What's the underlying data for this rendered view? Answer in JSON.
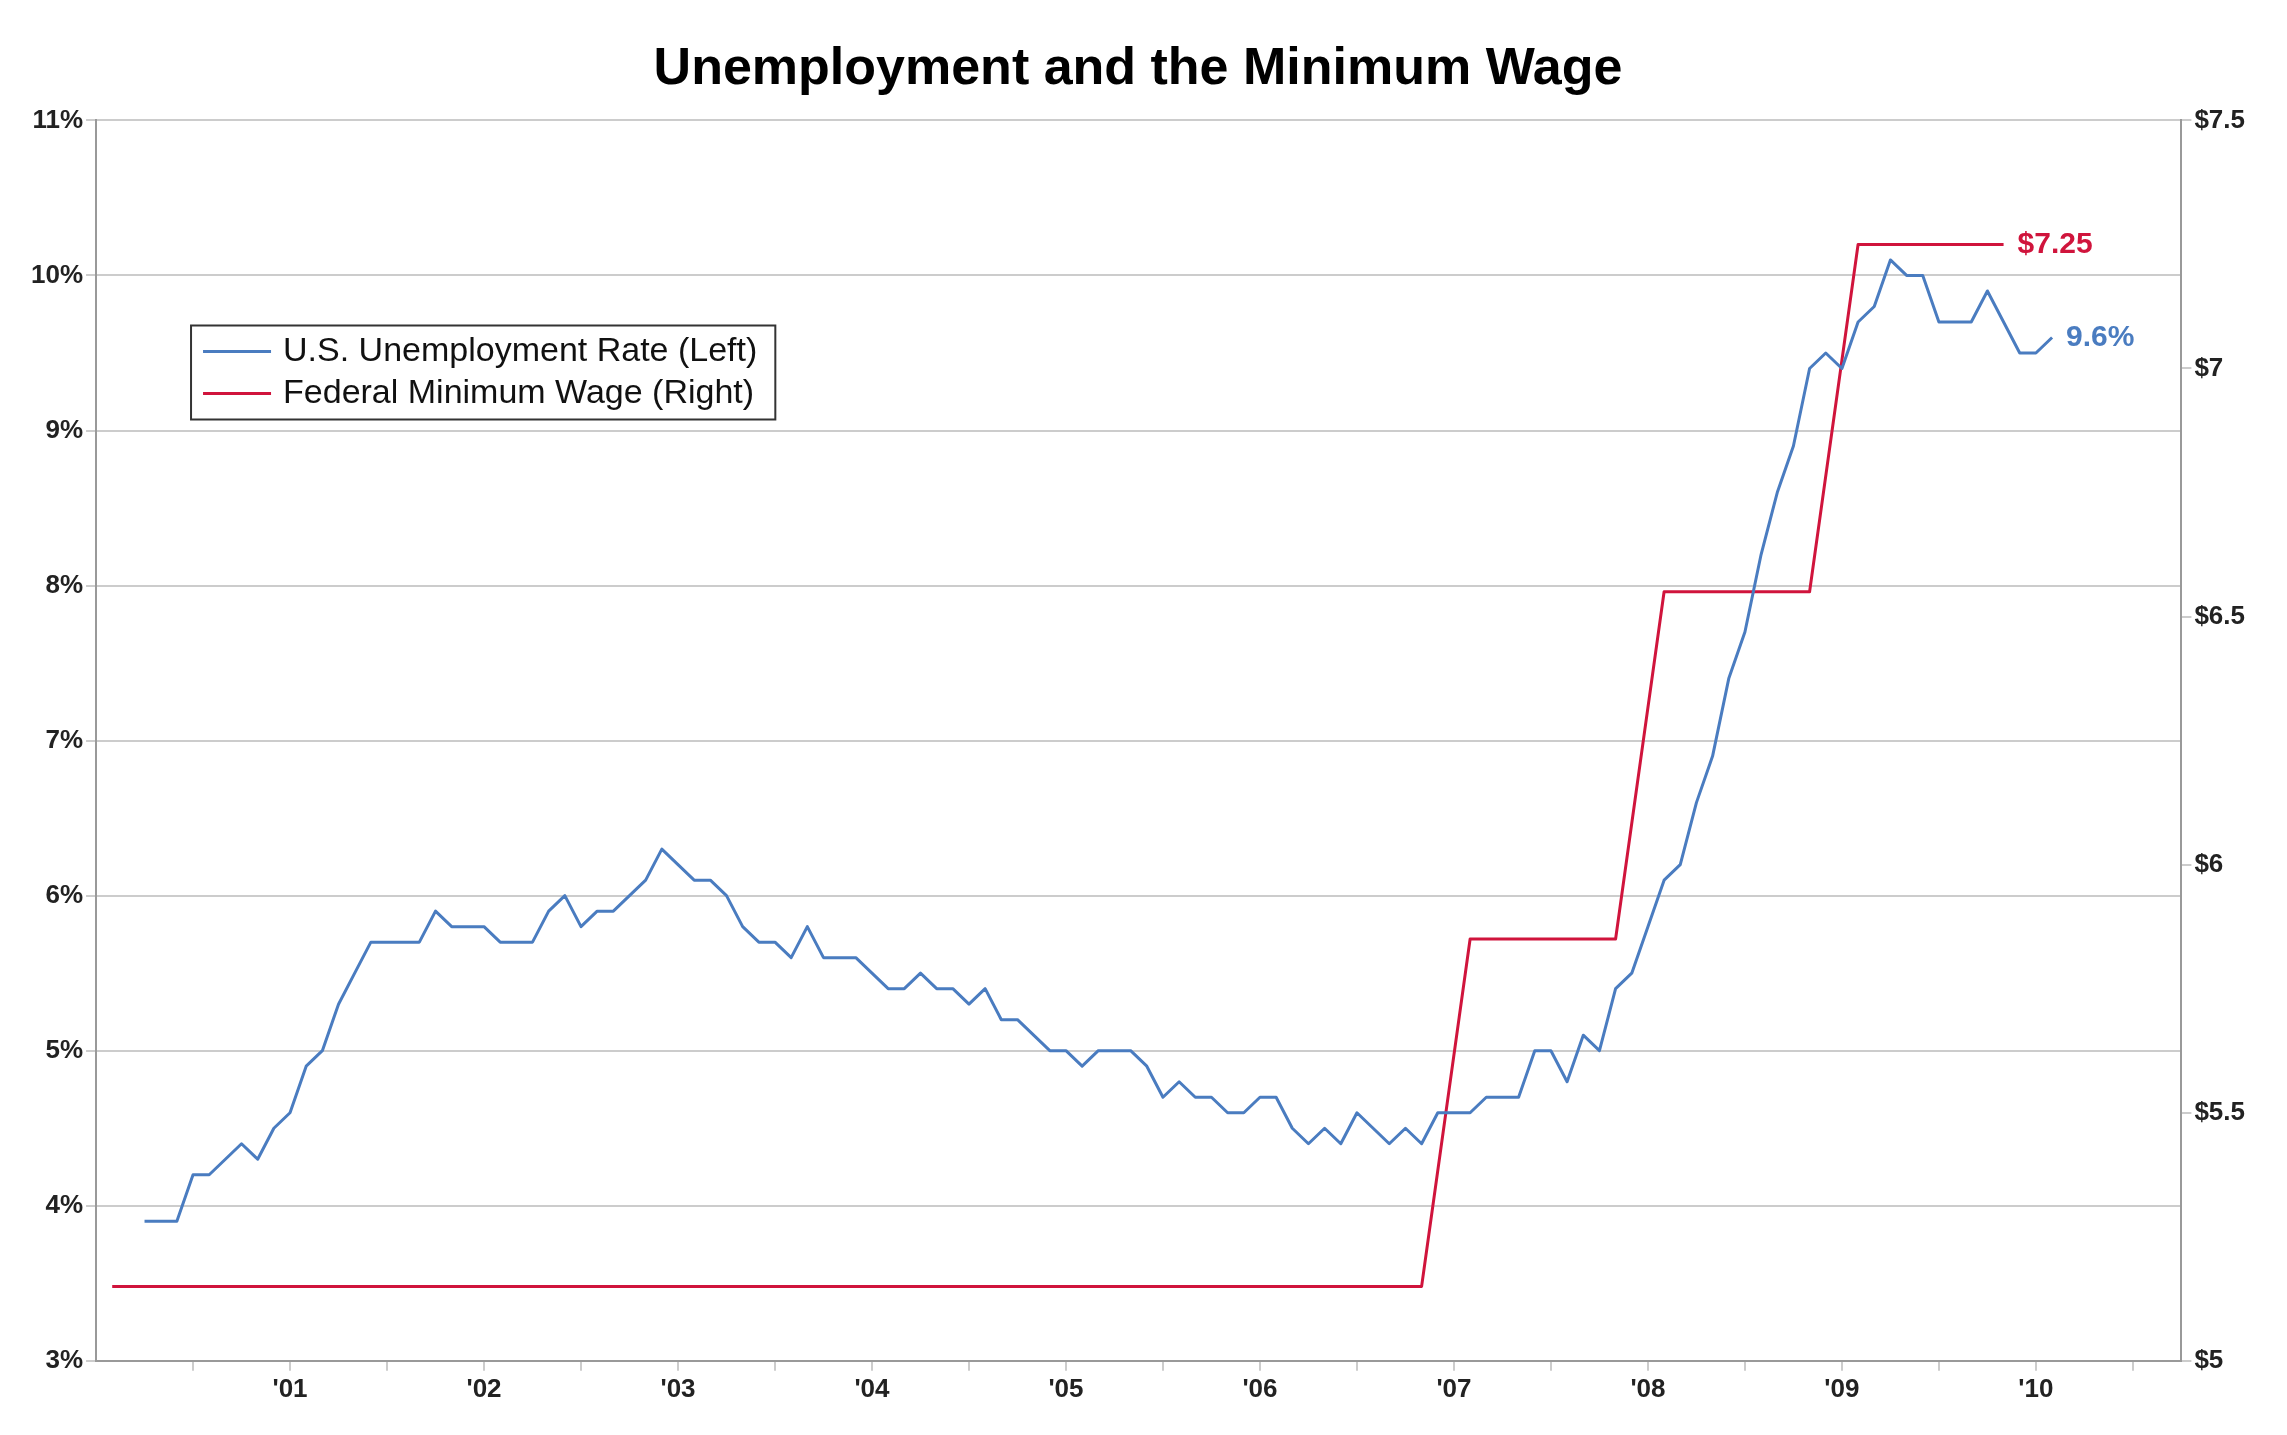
{
  "chart_data": {
    "type": "line",
    "title": "Unemployment and the Minimum Wage",
    "xlim": [
      "2000-07",
      "2011-04"
    ],
    "xticks": [
      {
        "value": "2001-01",
        "label": null
      },
      {
        "value": "2001-07",
        "label": "'01"
      },
      {
        "value": "2002-01",
        "label": null
      },
      {
        "value": "2002-07",
        "label": "'02"
      },
      {
        "value": "2003-01",
        "label": null
      },
      {
        "value": "2003-07",
        "label": "'03"
      },
      {
        "value": "2004-01",
        "label": null
      },
      {
        "value": "2004-07",
        "label": "'04"
      },
      {
        "value": "2005-01",
        "label": null
      },
      {
        "value": "2005-07",
        "label": "'05"
      },
      {
        "value": "2006-01",
        "label": null
      },
      {
        "value": "2006-07",
        "label": "'06"
      },
      {
        "value": "2007-01",
        "label": null
      },
      {
        "value": "2007-07",
        "label": "'07"
      },
      {
        "value": "2008-01",
        "label": null
      },
      {
        "value": "2008-07",
        "label": "'08"
      },
      {
        "value": "2009-01",
        "label": null
      },
      {
        "value": "2009-07",
        "label": "'09"
      },
      {
        "value": "2010-01",
        "label": null
      },
      {
        "value": "2010-07",
        "label": "'10"
      },
      {
        "value": "2011-01",
        "label": null
      }
    ],
    "ylim": [
      3,
      11
    ],
    "yticks": [
      {
        "value": 3,
        "label": "3%"
      },
      {
        "value": 4,
        "label": "4%"
      },
      {
        "value": 5,
        "label": "5%"
      },
      {
        "value": 6,
        "label": "6%"
      },
      {
        "value": 7,
        "label": "7%"
      },
      {
        "value": 8,
        "label": "8%"
      },
      {
        "value": 9,
        "label": "9%"
      },
      {
        "value": 10,
        "label": "10%"
      },
      {
        "value": 11,
        "label": "11%"
      }
    ],
    "y2lim": [
      5,
      7.5
    ],
    "y2ticks": [
      {
        "value": 5,
        "label": "$5"
      },
      {
        "value": 5.5,
        "label": "$5.5"
      },
      {
        "value": 6,
        "label": "$6"
      },
      {
        "value": 6.5,
        "label": "$6.5"
      },
      {
        "value": 7,
        "label": "$7"
      },
      {
        "value": 7.5,
        "label": "$7.5"
      }
    ],
    "grid": "y",
    "legend": "top left",
    "marker": "none",
    "line_style": "solid",
    "series": [
      {
        "name": "U.S. Unemployment Rate (Left)",
        "color": "#4a7cc0",
        "x": [
          "2000-10",
          "2000-11",
          "2000-12",
          "2001-01",
          "2001-02",
          "2001-03",
          "2001-04",
          "2001-05",
          "2001-06",
          "2001-07",
          "2001-08",
          "2001-09",
          "2001-10",
          "2001-11",
          "2001-12",
          "2002-01",
          "2002-02",
          "2002-03",
          "2002-04",
          "2002-05",
          "2002-06",
          "2002-07",
          "2002-08",
          "2002-09",
          "2002-10",
          "2002-11",
          "2002-12",
          "2003-01",
          "2003-02",
          "2003-03",
          "2003-04",
          "2003-05",
          "2003-06",
          "2003-07",
          "2003-08",
          "2003-09",
          "2003-10",
          "2003-11",
          "2003-12",
          "2004-01",
          "2004-02",
          "2004-03",
          "2004-04",
          "2004-05",
          "2004-06",
          "2004-07",
          "2004-08",
          "2004-09",
          "2004-10",
          "2004-11",
          "2004-12",
          "2005-01",
          "2005-02",
          "2005-03",
          "2005-04",
          "2005-05",
          "2005-06",
          "2005-07",
          "2005-08",
          "2005-09",
          "2005-10",
          "2005-11",
          "2005-12",
          "2006-01",
          "2006-02",
          "2006-03",
          "2006-04",
          "2006-05",
          "2006-06",
          "2006-07",
          "2006-08",
          "2006-09",
          "2006-10",
          "2006-11",
          "2006-12",
          "2007-01",
          "2007-02",
          "2007-03",
          "2007-04",
          "2007-05",
          "2007-06",
          "2007-07",
          "2007-08",
          "2007-09",
          "2007-10",
          "2007-11",
          "2007-12",
          "2008-01",
          "2008-02",
          "2008-03",
          "2008-04",
          "2008-05",
          "2008-06",
          "2008-07",
          "2008-08",
          "2008-09",
          "2008-10",
          "2008-11",
          "2008-12",
          "2009-01",
          "2009-02",
          "2009-03",
          "2009-04",
          "2009-05",
          "2009-06",
          "2009-07",
          "2009-08",
          "2009-09",
          "2009-10",
          "2009-11",
          "2009-12",
          "2010-01",
          "2010-02",
          "2010-03",
          "2010-04",
          "2010-05",
          "2010-06",
          "2010-07",
          "2010-08"
        ],
        "values": [
          3.9,
          3.9,
          3.9,
          4.2,
          4.2,
          4.3,
          4.4,
          4.3,
          4.5,
          4.6,
          4.9,
          5.0,
          5.3,
          5.5,
          5.7,
          5.7,
          5.7,
          5.7,
          5.9,
          5.8,
          5.8,
          5.8,
          5.7,
          5.7,
          5.7,
          5.9,
          6.0,
          5.8,
          5.9,
          5.9,
          6.0,
          6.1,
          6.3,
          6.2,
          6.1,
          6.1,
          6.0,
          5.8,
          5.7,
          5.7,
          5.6,
          5.8,
          5.6,
          5.6,
          5.6,
          5.5,
          5.4,
          5.4,
          5.5,
          5.4,
          5.4,
          5.3,
          5.4,
          5.2,
          5.2,
          5.1,
          5.0,
          5.0,
          4.9,
          5.0,
          5.0,
          5.0,
          4.9,
          4.7,
          4.8,
          4.7,
          4.7,
          4.6,
          4.6,
          4.7,
          4.7,
          4.5,
          4.4,
          4.5,
          4.4,
          4.6,
          4.5,
          4.4,
          4.5,
          4.4,
          4.6,
          4.6,
          4.6,
          4.7,
          4.7,
          4.7,
          5.0,
          5.0,
          4.8,
          5.1,
          5.0,
          5.4,
          5.5,
          5.8,
          6.1,
          6.2,
          6.6,
          6.9,
          7.4,
          7.7,
          8.2,
          8.6,
          8.9,
          9.4,
          9.5,
          9.4,
          9.7,
          9.8,
          10.1,
          10.0,
          10.0,
          9.7,
          9.7,
          9.7,
          9.9,
          9.7,
          9.5,
          9.5,
          9.6
        ],
        "value_labels": [
          null,
          null,
          null,
          null,
          null,
          null,
          null,
          null,
          null,
          null,
          null,
          null,
          null,
          null,
          null,
          null,
          null,
          null,
          null,
          null,
          null,
          null,
          null,
          null,
          null,
          null,
          null,
          null,
          null,
          null,
          null,
          null,
          null,
          null,
          null,
          null,
          null,
          null,
          null,
          null,
          null,
          null,
          null,
          null,
          null,
          null,
          null,
          null,
          null,
          null,
          null,
          null,
          null,
          null,
          null,
          null,
          null,
          null,
          null,
          null,
          null,
          null,
          null,
          null,
          null,
          null,
          null,
          null,
          null,
          null,
          null,
          null,
          null,
          null,
          null,
          null,
          null,
          null,
          null,
          null,
          null,
          null,
          null,
          null,
          null,
          null,
          null,
          null,
          null,
          null,
          null,
          null,
          null,
          null,
          null,
          null,
          null,
          null,
          null,
          null,
          null,
          null,
          null,
          null,
          null,
          null,
          null,
          null,
          null,
          null,
          null,
          null,
          null,
          null,
          null,
          null,
          null,
          null,
          "9.6%"
        ]
      },
      {
        "name": "Federal Minimum Wage (Right)",
        "color": "#d0143c",
        "axis": "y2",
        "x": [
          "2000-08",
          "2007-05",
          "2007-08",
          "2008-05",
          "2008-08",
          "2009-05",
          "2009-08",
          "2010-05"
        ],
        "values": [
          5.15,
          5.15,
          5.85,
          5.85,
          6.55,
          6.55,
          7.25,
          7.25
        ],
        "value_labels": [
          null,
          null,
          null,
          null,
          null,
          null,
          null,
          "$7.25"
        ]
      }
    ]
  }
}
